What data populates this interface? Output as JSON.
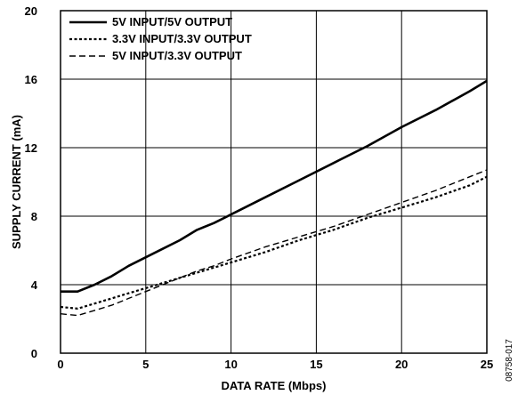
{
  "chart_data": {
    "type": "line",
    "title": "",
    "xlabel": "DATA RATE (Mbps)",
    "ylabel": "SUPPLY CURRENT (mA)",
    "xlim": [
      0,
      25
    ],
    "ylim": [
      0,
      20
    ],
    "xticks": [
      0,
      5,
      10,
      15,
      20,
      25
    ],
    "yticks": [
      0,
      4,
      8,
      12,
      16,
      20
    ],
    "grid": true,
    "legend_position": "top-left",
    "series": [
      {
        "name": "5V INPUT/5V OUTPUT",
        "style": "solid",
        "x": [
          0,
          1,
          2,
          3,
          4,
          5,
          6,
          7,
          8,
          9,
          10,
          12,
          14,
          16,
          18,
          20,
          22,
          24,
          25
        ],
        "y": [
          3.6,
          3.6,
          4.0,
          4.5,
          5.1,
          5.6,
          6.1,
          6.6,
          7.2,
          7.6,
          8.1,
          9.1,
          10.1,
          11.1,
          12.1,
          13.2,
          14.2,
          15.3,
          15.9
        ]
      },
      {
        "name": "3.3V INPUT/3.3V OUTPUT",
        "style": "dotted",
        "x": [
          0,
          1,
          2,
          3,
          4,
          5,
          6,
          7,
          8,
          9,
          10,
          12,
          14,
          16,
          18,
          20,
          22,
          24,
          25
        ],
        "y": [
          2.7,
          2.6,
          2.9,
          3.2,
          3.5,
          3.8,
          4.1,
          4.4,
          4.7,
          5.0,
          5.3,
          5.9,
          6.6,
          7.2,
          7.9,
          8.5,
          9.1,
          9.8,
          10.3
        ]
      },
      {
        "name": "5V INPUT/3.3V OUTPUT",
        "style": "dashed",
        "x": [
          0,
          1,
          2,
          3,
          4,
          5,
          6,
          7,
          8,
          9,
          10,
          12,
          14,
          16,
          18,
          20,
          22,
          24,
          25
        ],
        "y": [
          2.3,
          2.2,
          2.5,
          2.8,
          3.2,
          3.6,
          4.0,
          4.4,
          4.8,
          5.1,
          5.5,
          6.2,
          6.8,
          7.4,
          8.1,
          8.8,
          9.5,
          10.3,
          10.7
        ]
      }
    ],
    "figure_id": "08758-017"
  }
}
